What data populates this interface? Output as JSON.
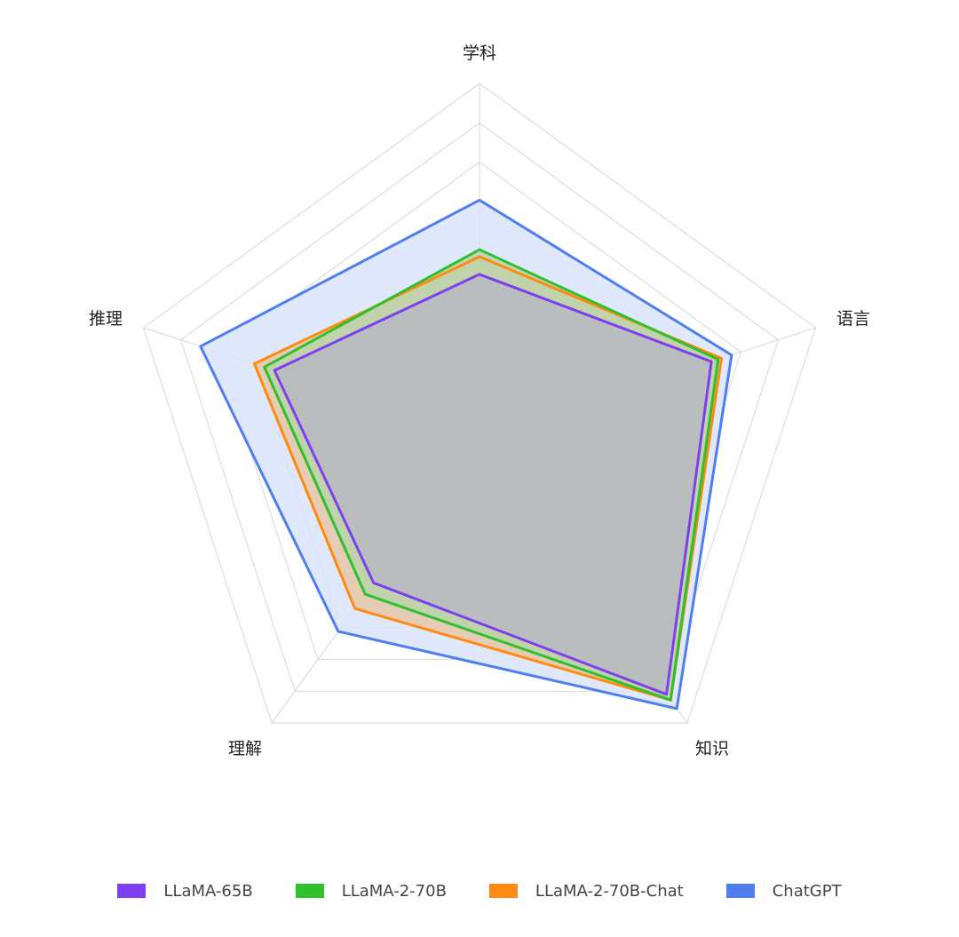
{
  "chart_data": {
    "type": "radar",
    "axes": [
      "学科",
      "语言",
      "知识",
      "理解",
      "推理"
    ],
    "range": [
      0,
      100
    ],
    "grid_rings": 9,
    "grid": true,
    "legend_position": "bottom",
    "series": [
      {
        "name": "ChatGPT",
        "color": "#4f7ef0",
        "fill": "#dbe5fb",
        "values": [
          67,
          75,
          95,
          68,
          83
        ]
      },
      {
        "name": "LLaMA-2-70B-Chat",
        "color": "#ff8a10",
        "fill": "#e8c7a8",
        "values": [
          51,
          72,
          92,
          60,
          67
        ]
      },
      {
        "name": "LLaMA-2-70B",
        "color": "#2ec02e",
        "fill": "#b9d3a8",
        "values": [
          53,
          71,
          92,
          55,
          64
        ]
      },
      {
        "name": "LLaMA-65B",
        "color": "#7d3ff0",
        "fill": "#b8b8c2",
        "values": [
          46,
          69,
          90,
          51,
          61
        ]
      }
    ]
  },
  "legend": [
    {
      "label": "LLaMA-65B",
      "color": "#7d3ff0"
    },
    {
      "label": "LLaMA-2-70B",
      "color": "#2ec02e"
    },
    {
      "label": "LLaMA-2-70B-Chat",
      "color": "#ff8a10"
    },
    {
      "label": "ChatGPT",
      "color": "#4f7ef0"
    }
  ]
}
